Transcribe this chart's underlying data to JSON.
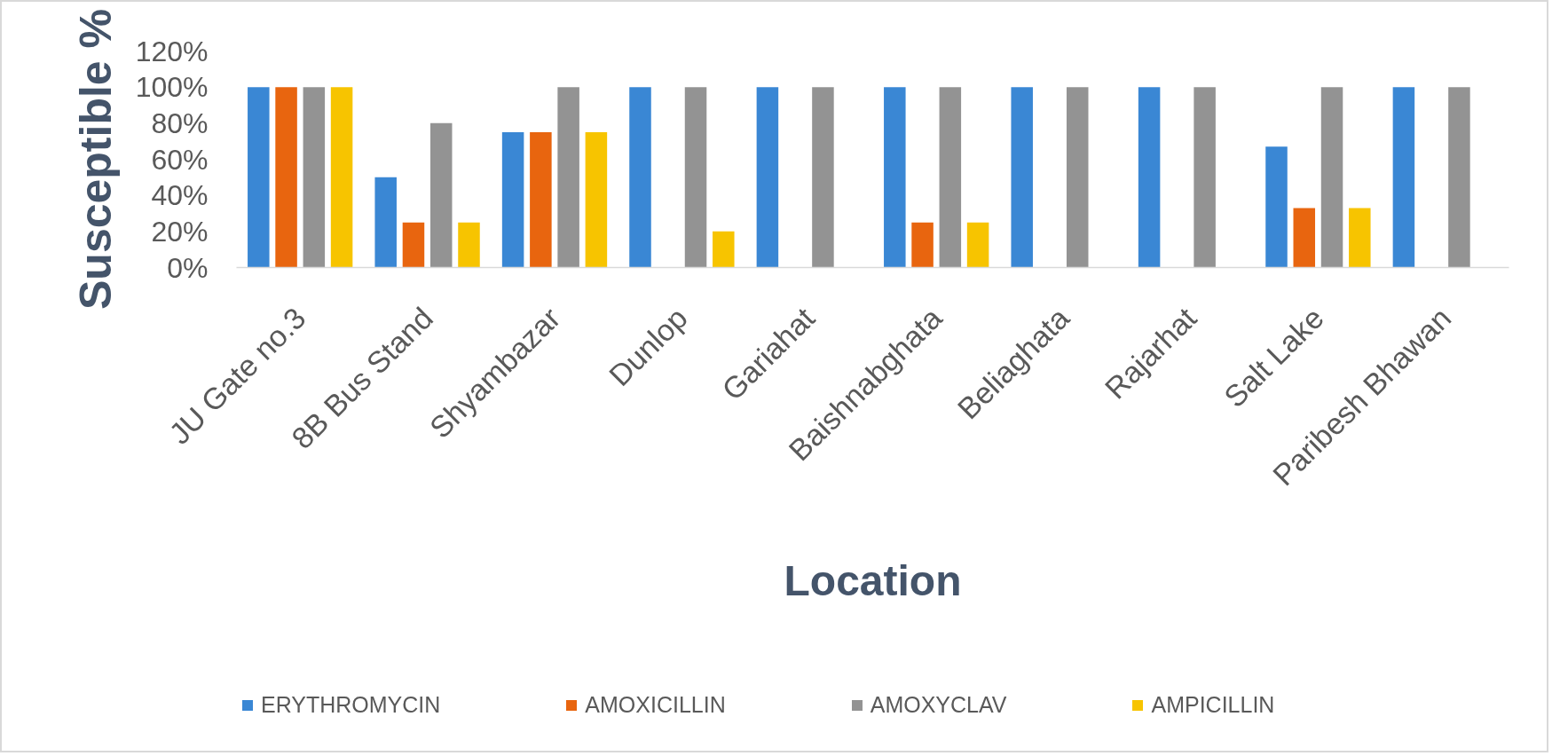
{
  "chart_data": {
    "type": "bar",
    "xlabel": "Location",
    "ylabel": "Susceptible %",
    "categories": [
      "JU Gate no.3",
      "8B Bus Stand",
      "Shyambazar",
      "Dunlop",
      "Gariahat",
      "Baishnabghata",
      "Beliaghata",
      "Rajarhat",
      "Salt Lake",
      "Paribesh Bhawan"
    ],
    "series": [
      {
        "name": "ERYTHROMYCIN",
        "color": "#3a87d4",
        "values": [
          100,
          50,
          75,
          100,
          100,
          100,
          100,
          100,
          67,
          100
        ]
      },
      {
        "name": "AMOXICILLIN",
        "color": "#e8650f",
        "values": [
          100,
          25,
          75,
          0,
          0,
          25,
          0,
          0,
          33,
          0
        ]
      },
      {
        "name": "AMOXYCLAV",
        "color": "#939393",
        "values": [
          100,
          80,
          100,
          100,
          100,
          100,
          100,
          100,
          100,
          100
        ]
      },
      {
        "name": "AMPICILLIN",
        "color": "#f7c400",
        "values": [
          100,
          25,
          75,
          20,
          0,
          25,
          0,
          0,
          33,
          0
        ]
      }
    ],
    "ylim": [
      0,
      120
    ],
    "yticks": [
      {
        "value": 0,
        "label": "0%"
      },
      {
        "value": 20,
        "label": "20%"
      },
      {
        "value": 40,
        "label": "40%"
      },
      {
        "value": 60,
        "label": "60%"
      },
      {
        "value": 80,
        "label": "80%"
      },
      {
        "value": 100,
        "label": "100%"
      },
      {
        "value": 120,
        "label": "120%"
      }
    ],
    "grid": false,
    "legend": "bottom"
  }
}
